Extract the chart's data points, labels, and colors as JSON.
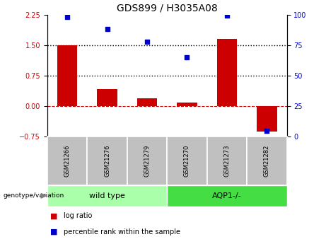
{
  "title": "GDS899 / H3035A08",
  "samples": [
    "GSM21266",
    "GSM21276",
    "GSM21279",
    "GSM21270",
    "GSM21273",
    "GSM21282"
  ],
  "log_ratio": [
    1.49,
    0.42,
    0.2,
    0.09,
    1.65,
    -0.62
  ],
  "percentile_rank": [
    98,
    88,
    78,
    65,
    99,
    5
  ],
  "ylim_left": [
    -0.75,
    2.25
  ],
  "ylim_right": [
    0,
    100
  ],
  "yticks_left": [
    -0.75,
    0,
    0.75,
    1.5,
    2.25
  ],
  "yticks_right": [
    0,
    25,
    50,
    75,
    100
  ],
  "hlines": [
    0.75,
    1.5
  ],
  "bar_color": "#CC0000",
  "dot_color": "#0000CC",
  "zero_line_color": "#CC0000",
  "hline_color": "#000000",
  "sample_box_color": "#C0C0C0",
  "group_wt_color": "#AAFFAA",
  "group_aqp_color": "#44DD44",
  "legend_log_ratio_color": "#CC0000",
  "legend_percentile_color": "#0000CC",
  "genotype_label": "genotype/variation",
  "groups": [
    {
      "label": "wild type",
      "start": 0,
      "end": 3,
      "color": "#AAFFAA"
    },
    {
      "label": "AQP1-/-",
      "start": 3,
      "end": 6,
      "color": "#44DD44"
    }
  ]
}
